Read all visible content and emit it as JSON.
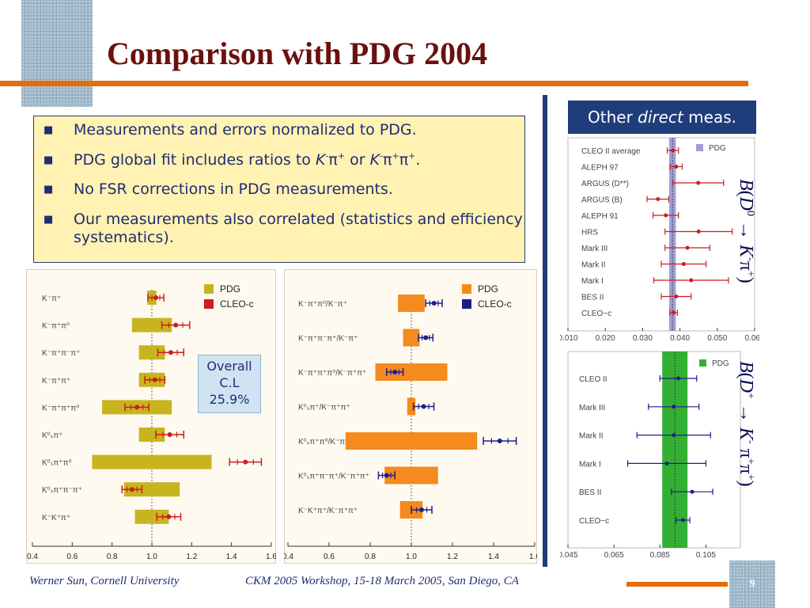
{
  "slide": {
    "title": "Comparison with PDG 2004",
    "page_number": "9",
    "footer_left": "Werner Sun, Cornell University",
    "footer_center": "CKM 2005 Workshop, 15-18 March 2005, San Diego, CA"
  },
  "bullets": {
    "b1": "Measurements and errors normalized to PDG.",
    "b2_pre": "PDG global fit includes ratios to ",
    "b2_or": " or ",
    "b3": "No FSR corrections in PDG measurements.",
    "b4": "Our measurements also correlated (statistics and efficiency systematics)."
  },
  "overall": {
    "line1": "Overall",
    "line2": "C.L",
    "line3": "25.9%"
  },
  "other_box": {
    "pre": "Other ",
    "em": "direct",
    "post": " meas."
  },
  "labels": {
    "bf_d0": "B(D0 → K-π+)",
    "bf_dp": "B(D+ → K- π+π+)"
  },
  "chart_data": [
    {
      "type": "scatter",
      "name": "left",
      "xlim": [
        0.4,
        1.6
      ],
      "xticks": [
        0.4,
        0.6,
        0.8,
        1.0,
        1.2,
        1.4,
        1.6
      ],
      "legend": [
        {
          "label": "PDG",
          "color": "#c8b41e"
        },
        {
          "label": "CLEO-c",
          "color": "#cc1e1e"
        }
      ],
      "legend_position": "top-right",
      "pdg_color": "#c8b41e",
      "cleo_color": "#cc1e1e",
      "rows": [
        {
          "label": "K⁻π⁺",
          "pdg_center": 1.0,
          "pdg_err": 0.023,
          "cleo": 1.02,
          "cleo_err": 0.04
        },
        {
          "label": "K⁻π⁺π⁰",
          "pdg_center": 1.0,
          "pdg_err": 0.1,
          "cleo": 1.12,
          "cleo_err": 0.07
        },
        {
          "label": "K⁻π⁺π⁻π⁺",
          "pdg_center": 1.0,
          "pdg_err": 0.065,
          "cleo": 1.095,
          "cleo_err": 0.065
        },
        {
          "label": "K⁻π⁺π⁺",
          "pdg_center": 1.0,
          "pdg_err": 0.065,
          "cleo": 1.015,
          "cleo_err": 0.05
        },
        {
          "label": "K⁻π⁺π⁺π⁰",
          "pdg_center": 0.925,
          "pdg_err": 0.175,
          "cleo": 0.925,
          "cleo_err": 0.06
        },
        {
          "label": "K⁰ₛπ⁺",
          "pdg_center": 1.0,
          "pdg_err": 0.065,
          "cleo": 1.09,
          "cleo_err": 0.07
        },
        {
          "label": "K⁰ₛπ⁺π⁰",
          "pdg_center": 1.0,
          "pdg_err": 0.3,
          "cleo": 1.47,
          "cleo_err": 0.08
        },
        {
          "label": "K⁰ₛπ⁺π⁻π⁺",
          "pdg_center": 1.0,
          "pdg_err": 0.14,
          "cleo": 0.9,
          "cleo_err": 0.05
        },
        {
          "label": "K⁻K⁺π⁺",
          "pdg_center": 1.0,
          "pdg_err": 0.085,
          "cleo": 1.085,
          "cleo_err": 0.06
        }
      ]
    },
    {
      "type": "scatter",
      "name": "middle",
      "xlim": [
        0.4,
        1.6
      ],
      "xticks": [
        0.4,
        0.6,
        0.8,
        1.0,
        1.2,
        1.4,
        1.6
      ],
      "legend": [
        {
          "label": "PDG",
          "color": "#f58a1e"
        },
        {
          "label": "CLEO-c",
          "color": "#1e1e8a"
        }
      ],
      "legend_position": "top-right",
      "pdg_color": "#f58a1e",
      "cleo_color": "#1e1e8a",
      "rows": [
        {
          "label": "K⁻π⁺π⁰/K⁻π⁺",
          "pdg_center": 1.0,
          "pdg_err": 0.065,
          "cleo": 1.11,
          "cleo_err": 0.04
        },
        {
          "label": "K⁻π⁺π⁻π⁺/K⁻π⁺",
          "pdg_center": 1.0,
          "pdg_err": 0.04,
          "cleo": 1.07,
          "cleo_err": 0.035
        },
        {
          "label": "K⁻π⁺π⁺π⁰/K⁻π⁺π⁺",
          "pdg_center": 1.0,
          "pdg_err": 0.175,
          "cleo": 0.92,
          "cleo_err": 0.04
        },
        {
          "label": "K⁰ₛπ⁺/K⁻π⁺π⁺",
          "pdg_center": 1.0,
          "pdg_err": 0.02,
          "cleo": 1.06,
          "cleo_err": 0.05
        },
        {
          "label": "K⁰ₛπ⁺π⁰/K⁻π⁺π⁺",
          "pdg_center": 1.0,
          "pdg_err": 0.32,
          "cleo": 1.43,
          "cleo_err": 0.08
        },
        {
          "label": "K⁰ₛπ⁺π⁻π⁺/K⁻π⁺π⁺",
          "pdg_center": 1.0,
          "pdg_err": 0.13,
          "cleo": 0.88,
          "cleo_err": 0.04
        },
        {
          "label": "K⁻K⁺π⁺/K⁻π⁺π⁺",
          "pdg_center": 1.0,
          "pdg_err": 0.055,
          "cleo": 1.05,
          "cleo_err": 0.05
        }
      ]
    },
    {
      "type": "scatter",
      "name": "right-top",
      "xlim": [
        0.01,
        0.06
      ],
      "xticks": [
        0.01,
        0.02,
        0.03,
        0.04,
        0.05,
        0.06
      ],
      "xtick_labels": [
        "0.010",
        "0.020",
        "0.030",
        "0.040",
        "0.050",
        "0.060"
      ],
      "band": {
        "label": "PDG",
        "center": 0.038,
        "halfwidth": 0.0009,
        "color": "#9f9fd8"
      },
      "marker_color": "#cc1e1e",
      "rows": [
        {
          "label": "CLEO II average",
          "value": 0.0381,
          "err": 0.0015
        },
        {
          "label": "ALEPH 97",
          "value": 0.039,
          "err": 0.0016
        },
        {
          "label": "ARGUS (D**)",
          "value": 0.0449,
          "err": 0.0068
        },
        {
          "label": "ARGUS (B)",
          "value": 0.0341,
          "err": 0.0029
        },
        {
          "label": "ALEPH 91",
          "value": 0.0362,
          "err": 0.0034
        },
        {
          "label": "HRS",
          "value": 0.045,
          "err": 0.009
        },
        {
          "label": "Mark III",
          "value": 0.042,
          "err": 0.006
        },
        {
          "label": "Mark II",
          "value": 0.041,
          "err": 0.006
        },
        {
          "label": "Mark I",
          "value": 0.043,
          "err": 0.01
        },
        {
          "label": "BES II",
          "value": 0.039,
          "err": 0.004
        },
        {
          "label": "CLEO−c",
          "value": 0.0383,
          "err": 0.001
        }
      ]
    },
    {
      "type": "scatter",
      "name": "right-bottom",
      "xlim": [
        0.045,
        0.12
      ],
      "xticks": [
        0.045,
        0.065,
        0.085,
        0.105
      ],
      "xtick_labels": [
        "0.045",
        "0.065",
        "0.085",
        "0.105"
      ],
      "band": {
        "label": "PDG",
        "center": 0.0915,
        "halfwidth": 0.0055,
        "color": "#33b033"
      },
      "marker_color": "#1e1e8a",
      "rows": [
        {
          "label": "CLEO II",
          "value": 0.093,
          "err": 0.008
        },
        {
          "label": "Mark III",
          "value": 0.091,
          "err": 0.011
        },
        {
          "label": "Mark II",
          "value": 0.091,
          "err": 0.016
        },
        {
          "label": "Mark I",
          "value": 0.088,
          "err": 0.017
        },
        {
          "label": "BES II",
          "value": 0.099,
          "err": 0.009
        },
        {
          "label": "CLEO−c",
          "value": 0.095,
          "err": 0.003
        }
      ]
    }
  ]
}
